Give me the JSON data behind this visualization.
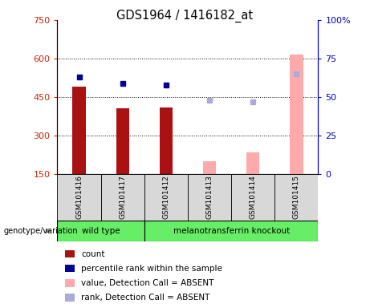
{
  "title": "GDS1964 / 1416182_at",
  "samples": [
    "GSM101416",
    "GSM101417",
    "GSM101412",
    "GSM101413",
    "GSM101414",
    "GSM101415"
  ],
  "detection_call": [
    "P",
    "P",
    "P",
    "A",
    "A",
    "A"
  ],
  "count_values": [
    490,
    405,
    410,
    null,
    null,
    null
  ],
  "count_absent_values": [
    null,
    null,
    null,
    200,
    235,
    615
  ],
  "percentile_present": [
    63,
    59,
    58,
    null,
    null,
    null
  ],
  "percentile_absent": [
    null,
    null,
    null,
    48,
    47,
    65
  ],
  "left_ylim": [
    150,
    750
  ],
  "left_yticks": [
    150,
    300,
    450,
    600,
    750
  ],
  "right_ylim": [
    0,
    100
  ],
  "right_yticks": [
    0,
    25,
    50,
    75,
    100
  ],
  "count_color": "#AA1111",
  "count_absent_color": "#FFAAAA",
  "percentile_color": "#000099",
  "percentile_absent_color": "#AAAADD",
  "grid_color": "black",
  "sample_bg_color": "#D8D8D8",
  "wt_color": "#66EE66",
  "ko_color": "#66EE66",
  "left_label_color": "#CC2200",
  "right_label_color": "#0000CC",
  "wt_label": "wild type",
  "ko_label": "melanotransferrin knockout",
  "geno_label": "genotype/variation",
  "legend_items": [
    [
      "#AA1111",
      "count"
    ],
    [
      "#000099",
      "percentile rank within the sample"
    ],
    [
      "#FFAAAA",
      "value, Detection Call = ABSENT"
    ],
    [
      "#AAAADD",
      "rank, Detection Call = ABSENT"
    ]
  ]
}
